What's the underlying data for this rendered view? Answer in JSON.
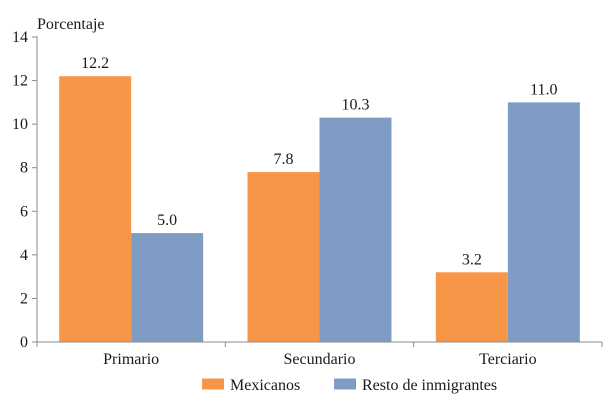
{
  "chart_data": {
    "type": "bar",
    "ylabel": "Porcentaje",
    "xlabel": "",
    "categories": [
      "Primario",
      "Secundario",
      "Terciario"
    ],
    "series": [
      {
        "name": "Mexicanos",
        "values": [
          12.2,
          7.8,
          3.2
        ],
        "labels": [
          "12.2",
          "7.8",
          "3.2"
        ],
        "color": "#F79646"
      },
      {
        "name": "Resto de inmigrantes",
        "values": [
          5.0,
          10.3,
          11.0
        ],
        "labels": [
          "5.0",
          "10.3",
          "11.0"
        ],
        "color": "#7F9DC4"
      }
    ],
    "ylim": [
      0,
      14
    ],
    "yticks": [
      "0",
      "2",
      "4",
      "6",
      "8",
      "10",
      "12",
      "14"
    ],
    "grid": false,
    "legend_position": "bottom"
  }
}
